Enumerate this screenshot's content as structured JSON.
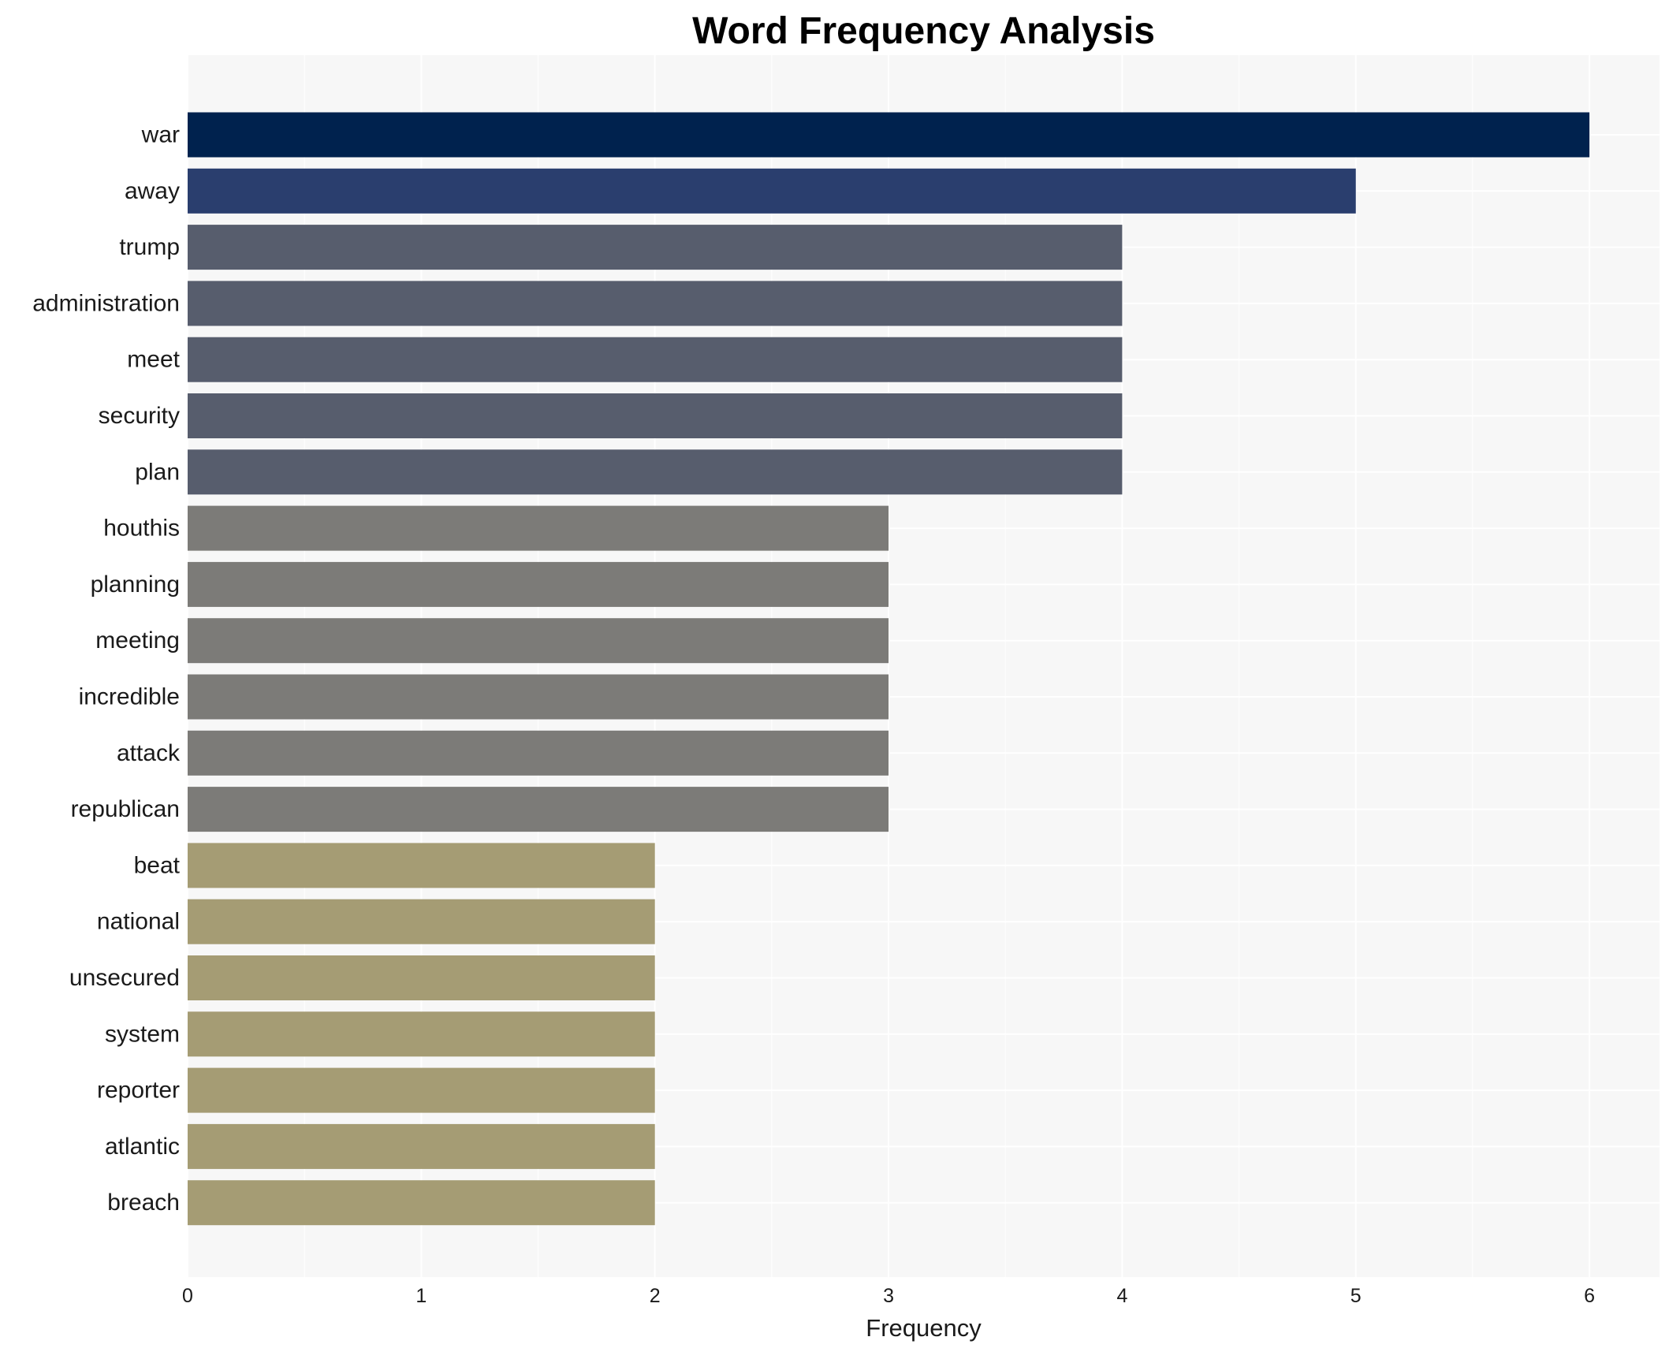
{
  "chart_data": {
    "type": "bar",
    "orientation": "horizontal",
    "title": "Word Frequency Analysis",
    "xlabel": "Frequency",
    "ylabel": "",
    "xlim": [
      0,
      6.3
    ],
    "x_ticks": [
      0,
      1,
      2,
      3,
      4,
      5,
      6
    ],
    "grid": true,
    "legend": "none",
    "background_color": "#f7f7f7",
    "categories": [
      "war",
      "away",
      "trump",
      "administration",
      "meet",
      "security",
      "plan",
      "houthis",
      "planning",
      "meeting",
      "incredible",
      "attack",
      "republican",
      "beat",
      "national",
      "unsecured",
      "system",
      "reporter",
      "atlantic",
      "breach"
    ],
    "values": [
      6,
      5,
      4,
      4,
      4,
      4,
      4,
      3,
      3,
      3,
      3,
      3,
      3,
      2,
      2,
      2,
      2,
      2,
      2,
      2
    ],
    "bar_colors": [
      "#00224e",
      "#2a3e6e",
      "#575d6d",
      "#575d6d",
      "#575d6d",
      "#575d6d",
      "#575d6d",
      "#7c7b78",
      "#7c7b78",
      "#7c7b78",
      "#7c7b78",
      "#7c7b78",
      "#7c7b78",
      "#a59c74",
      "#a59c74",
      "#a59c74",
      "#a59c74",
      "#a59c74",
      "#a59c74",
      "#a59c74"
    ]
  }
}
